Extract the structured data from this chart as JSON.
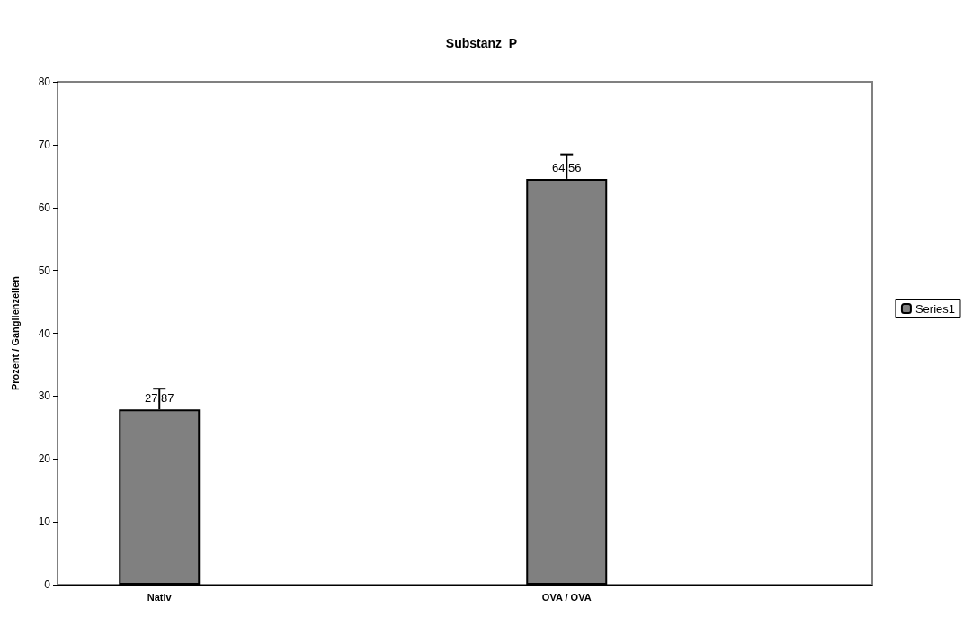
{
  "chart_data": {
    "type": "bar",
    "title": "Substanz  P",
    "ylabel": "Prozent / Ganglienzellen",
    "categories": [
      "Nativ",
      null,
      "OVA / OVA",
      null
    ],
    "series": [
      {
        "name": "Series1",
        "color": "#808080",
        "values": [
          27.87,
          null,
          64.56,
          null
        ],
        "errors": [
          3.3,
          null,
          3.9,
          null
        ]
      }
    ],
    "ylim": [
      0,
      80
    ],
    "yticks": [
      0,
      10,
      20,
      30,
      40,
      50,
      60,
      70,
      80
    ],
    "grid": false,
    "legend": "right",
    "data_labels": true
  }
}
